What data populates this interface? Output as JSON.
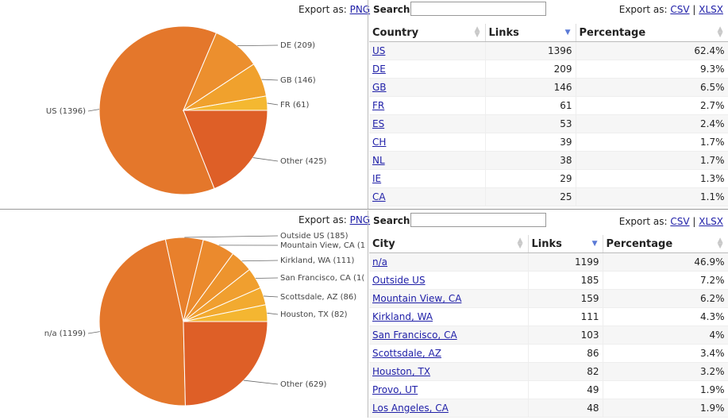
{
  "chart_data": [
    {
      "type": "pie",
      "title": "",
      "slices": [
        {
          "label": "US (1396)",
          "value": 1396,
          "color": "#E4772B"
        },
        {
          "label": "DE (209)",
          "value": 209,
          "color": "#EC8F2E"
        },
        {
          "label": "GB (146)",
          "value": 146,
          "color": "#F0A12D"
        },
        {
          "label": "FR (61)",
          "value": 61,
          "color": "#F4B831"
        },
        {
          "label": "Other (425)",
          "value": 425,
          "color": "#DE5F27"
        }
      ]
    },
    {
      "type": "pie",
      "title": "",
      "slices": [
        {
          "label": "n/a (1199)",
          "value": 1199,
          "color": "#E4772B"
        },
        {
          "label": "Outside US (185)",
          "value": 185,
          "color": "#E8802C"
        },
        {
          "label": "Mountain View, CA (1",
          "value": 159,
          "color": "#EB8A2D"
        },
        {
          "label": "Kirkland, WA (111)",
          "value": 111,
          "color": "#ED942E"
        },
        {
          "label": "San Francisco, CA (1(",
          "value": 103,
          "color": "#F09F2F"
        },
        {
          "label": "Scottsdale, AZ (86)",
          "value": 86,
          "color": "#F2AA30"
        },
        {
          "label": "Houston, TX (82)",
          "value": 82,
          "color": "#F4B631"
        },
        {
          "label": "Other (629)",
          "value": 629,
          "color": "#DE5F27"
        }
      ]
    }
  ],
  "panel1": {
    "export_label": "Export as:",
    "export_png": "PNG",
    "search_label": "Search:",
    "search_value": "",
    "export_right_label": "Export as:",
    "export_csv": "CSV",
    "export_sep": "|",
    "export_xlsx": "XLSX",
    "columns": [
      "Country",
      "Links",
      "Percentage"
    ],
    "rows": [
      {
        "name": "US",
        "links": "1396",
        "pct": "62.4%"
      },
      {
        "name": "DE",
        "links": "209",
        "pct": "9.3%"
      },
      {
        "name": "GB",
        "links": "146",
        "pct": "6.5%"
      },
      {
        "name": "FR",
        "links": "61",
        "pct": "2.7%"
      },
      {
        "name": "ES",
        "links": "53",
        "pct": "2.4%"
      },
      {
        "name": "CH",
        "links": "39",
        "pct": "1.7%"
      },
      {
        "name": "NL",
        "links": "38",
        "pct": "1.7%"
      },
      {
        "name": "IE",
        "links": "29",
        "pct": "1.3%"
      },
      {
        "name": "CA",
        "links": "25",
        "pct": "1.1%"
      }
    ]
  },
  "panel2": {
    "export_label": "Export as:",
    "export_png": "PNG",
    "search_label": "Search:",
    "search_value": "",
    "export_right_label": "Export as:",
    "export_csv": "CSV",
    "export_sep": "|",
    "export_xlsx": "XLSX",
    "columns": [
      "City",
      "Links",
      "Percentage"
    ],
    "rows": [
      {
        "name": "n/a",
        "links": "1199",
        "pct": "46.9%"
      },
      {
        "name": "Outside US",
        "links": "185",
        "pct": "7.2%"
      },
      {
        "name": "Mountain View, CA",
        "links": "159",
        "pct": "6.2%"
      },
      {
        "name": "Kirkland, WA",
        "links": "111",
        "pct": "4.3%"
      },
      {
        "name": "San Francisco, CA",
        "links": "103",
        "pct": "4%"
      },
      {
        "name": "Scottsdale, AZ",
        "links": "86",
        "pct": "3.4%"
      },
      {
        "name": "Houston, TX",
        "links": "82",
        "pct": "3.2%"
      },
      {
        "name": "Provo, UT",
        "links": "49",
        "pct": "1.9%"
      },
      {
        "name": "Los Angeles, CA",
        "links": "48",
        "pct": "1.9%"
      }
    ]
  }
}
